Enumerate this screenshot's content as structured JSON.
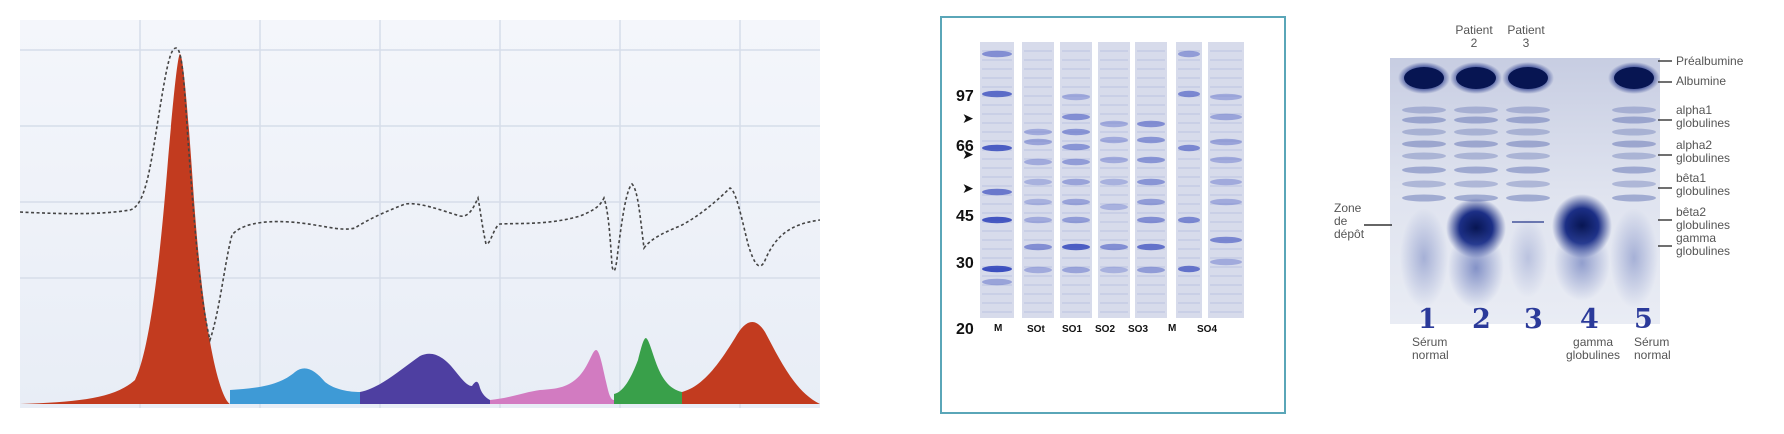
{
  "panel1": {
    "colors": {
      "red": "#c23b1f",
      "cyan": "#3e9ad6",
      "indigo": "#4e3fa1",
      "pink": "#d27bc1",
      "green": "#39a04a",
      "trace": "#444444",
      "grid": "#d6dde9"
    }
  },
  "panel2": {
    "mw_labels": [
      "97",
      "66",
      "45",
      "30",
      "20"
    ],
    "lane_labels": [
      "M",
      "SOt",
      "SO1",
      "SO2",
      "SO3",
      "M",
      "SO4"
    ],
    "border_color": "#5aa6b8",
    "band_color": "#3c4fbf"
  },
  "panel3": {
    "top_labels": [
      {
        "line1": "Patient",
        "line2": "2"
      },
      {
        "line1": "Patient",
        "line2": "3"
      }
    ],
    "right_labels": [
      {
        "line1": "Préalbumine",
        "line2": ""
      },
      {
        "line1": "Albumine",
        "line2": ""
      },
      {
        "line1": "alpha1",
        "line2": "globulines"
      },
      {
        "line1": "alpha2",
        "line2": "globulines"
      },
      {
        "line1": "bêta1",
        "line2": "globulines"
      },
      {
        "line1": "bêta2",
        "line2": "globulines"
      },
      {
        "line1": "gamma",
        "line2": "globulines"
      }
    ],
    "left_label": {
      "line1": "Zone",
      "line2": "de",
      "line3": "dépôt"
    },
    "lane_numbers": [
      "1",
      "2",
      "3",
      "4",
      "5"
    ],
    "bottom_labels": [
      {
        "line1": "Sérum",
        "line2": "normal"
      },
      {
        "line1": "gamma",
        "line2": "globulines"
      },
      {
        "line1": "Sérum",
        "line2": "normal"
      }
    ],
    "dark_band_color": "#071552"
  }
}
